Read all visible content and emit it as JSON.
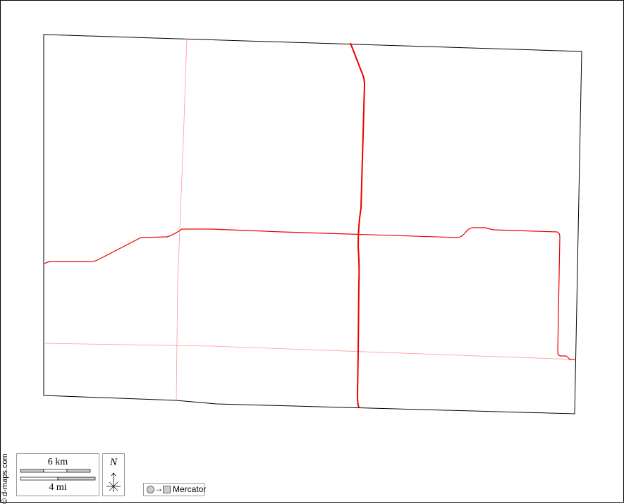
{
  "credit": "© d-maps.com",
  "scale": {
    "km_label": "6 km",
    "mi_label": "4 mi"
  },
  "north": {
    "label": "N"
  },
  "projection": {
    "arrow": "→",
    "label": "Mercator"
  },
  "colors": {
    "road_major": "#ff0000",
    "road_minor": "#ff9999",
    "border": "#000000"
  }
}
